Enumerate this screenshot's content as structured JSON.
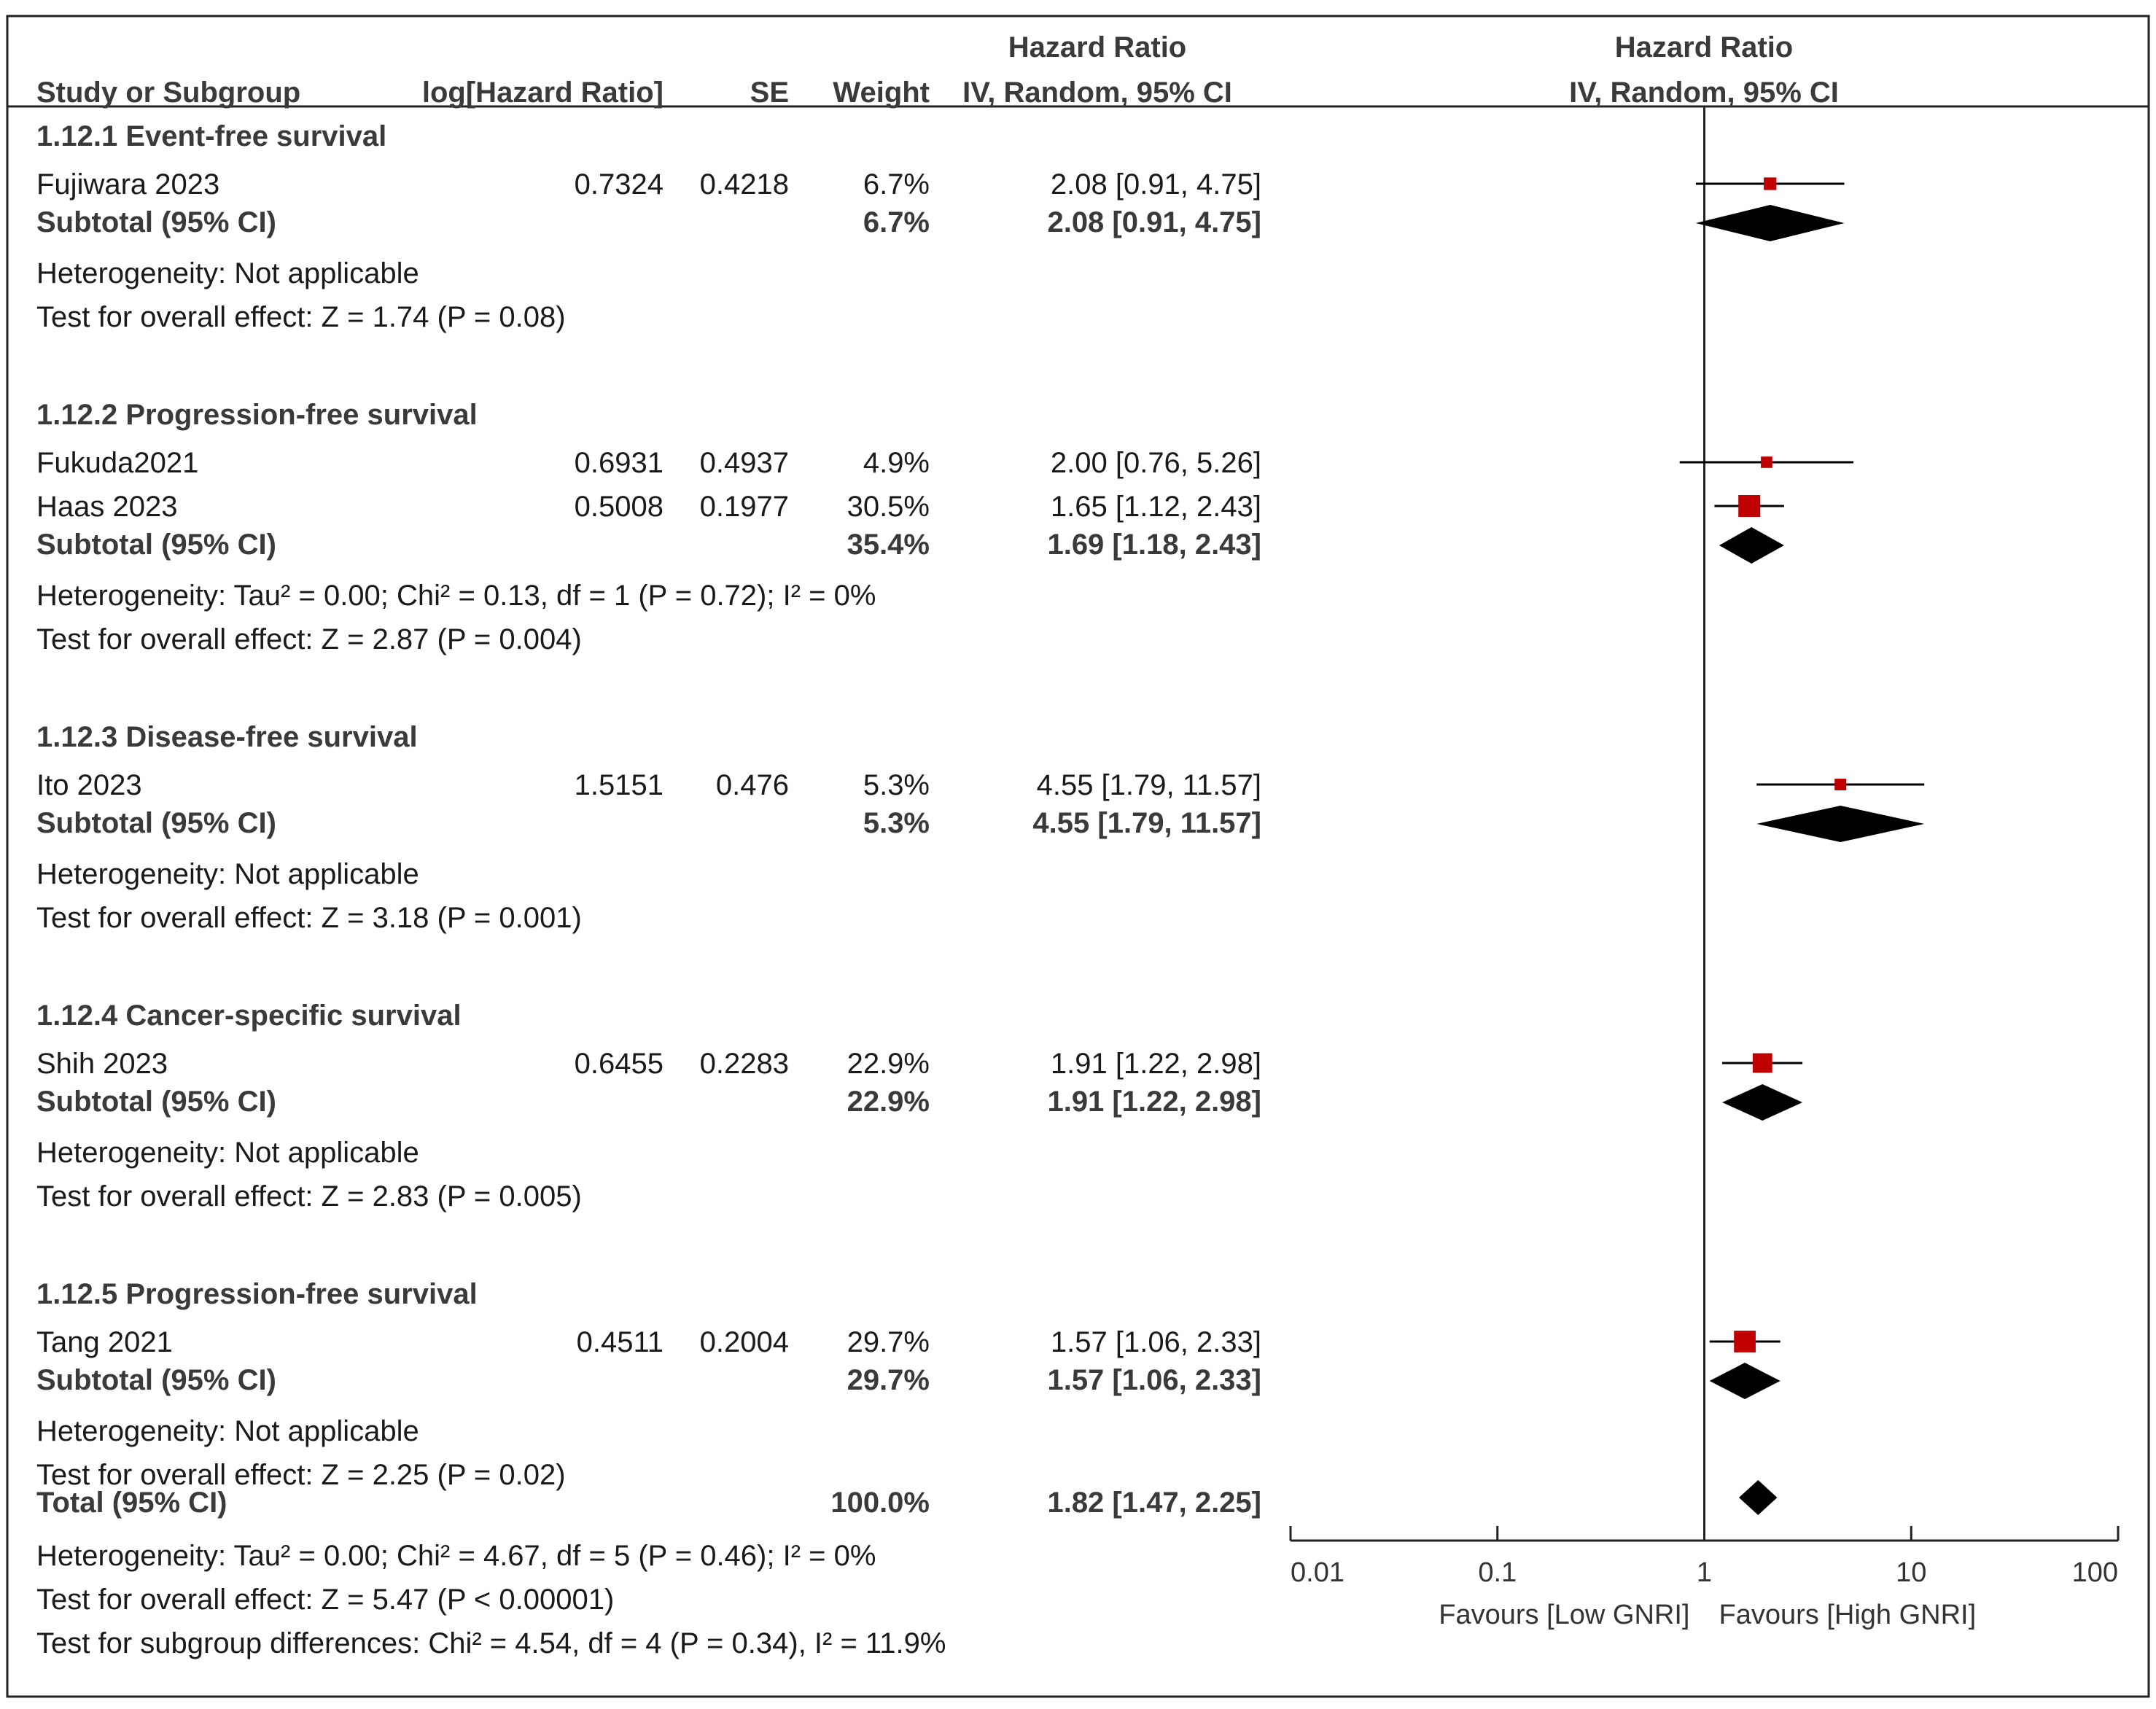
{
  "chart_data": {
    "type": "forest",
    "headers": {
      "study": "Study or Subgroup",
      "loghr": "log[Hazard Ratio]",
      "se": "SE",
      "weight": "Weight",
      "hr_title": "Hazard Ratio",
      "hr_method": "IV, Random, 95% CI",
      "plot_title": "Hazard Ratio",
      "plot_method": "IV, Random, 95% CI"
    },
    "subgroups": [
      {
        "title": "1.12.1 Event-free survival",
        "studies": [
          {
            "name": "Fujiwara 2023",
            "loghr": "0.7324",
            "se": "0.4218",
            "weight": "6.7%",
            "ci_text": "2.08 [0.91, 4.75]",
            "hr": 2.08,
            "lo": 0.91,
            "hi": 4.75,
            "w": 6.7
          }
        ],
        "subtotal": {
          "label": "Subtotal (95% CI)",
          "weight": "6.7%",
          "ci_text": "2.08 [0.91, 4.75]",
          "hr": 2.08,
          "lo": 0.91,
          "hi": 4.75
        },
        "heterogeneity": "Heterogeneity: Not applicable",
        "overall": "Test for overall effect: Z = 1.74 (P = 0.08)"
      },
      {
        "title": "1.12.2 Progression-free survival",
        "studies": [
          {
            "name": "Fukuda2021",
            "loghr": "0.6931",
            "se": "0.4937",
            "weight": "4.9%",
            "ci_text": "2.00 [0.76, 5.26]",
            "hr": 2.0,
            "lo": 0.76,
            "hi": 5.26,
            "w": 4.9
          },
          {
            "name": "Haas 2023",
            "loghr": "0.5008",
            "se": "0.1977",
            "weight": "30.5%",
            "ci_text": "1.65 [1.12, 2.43]",
            "hr": 1.65,
            "lo": 1.12,
            "hi": 2.43,
            "w": 30.5
          }
        ],
        "subtotal": {
          "label": "Subtotal (95% CI)",
          "weight": "35.4%",
          "ci_text": "1.69 [1.18, 2.43]",
          "hr": 1.69,
          "lo": 1.18,
          "hi": 2.43
        },
        "heterogeneity": "Heterogeneity: Tau² = 0.00; Chi² = 0.13, df = 1 (P = 0.72); I² = 0%",
        "overall": "Test for overall effect: Z = 2.87 (P = 0.004)"
      },
      {
        "title": "1.12.3 Disease-free survival",
        "studies": [
          {
            "name": "Ito 2023",
            "loghr": "1.5151",
            "se": "0.476",
            "weight": "5.3%",
            "ci_text": "4.55 [1.79, 11.57]",
            "hr": 4.55,
            "lo": 1.79,
            "hi": 11.57,
            "w": 5.3
          }
        ],
        "subtotal": {
          "label": "Subtotal (95% CI)",
          "weight": "5.3%",
          "ci_text": "4.55 [1.79, 11.57]",
          "hr": 4.55,
          "lo": 1.79,
          "hi": 11.57
        },
        "heterogeneity": "Heterogeneity: Not applicable",
        "overall": "Test for overall effect: Z = 3.18 (P = 0.001)"
      },
      {
        "title": "1.12.4 Cancer-specific survival",
        "studies": [
          {
            "name": "Shih 2023",
            "loghr": "0.6455",
            "se": "0.2283",
            "weight": "22.9%",
            "ci_text": "1.91 [1.22, 2.98]",
            "hr": 1.91,
            "lo": 1.22,
            "hi": 2.98,
            "w": 22.9
          }
        ],
        "subtotal": {
          "label": "Subtotal (95% CI)",
          "weight": "22.9%",
          "ci_text": "1.91 [1.22, 2.98]",
          "hr": 1.91,
          "lo": 1.22,
          "hi": 2.98
        },
        "heterogeneity": "Heterogeneity: Not applicable",
        "overall": "Test for overall effect: Z = 2.83 (P = 0.005)"
      },
      {
        "title": "1.12.5 Progression-free survival",
        "studies": [
          {
            "name": "Tang 2021",
            "loghr": "0.4511",
            "se": "0.2004",
            "weight": "29.7%",
            "ci_text": "1.57 [1.06, 2.33]",
            "hr": 1.57,
            "lo": 1.06,
            "hi": 2.33,
            "w": 29.7
          }
        ],
        "subtotal": {
          "label": "Subtotal (95% CI)",
          "weight": "29.7%",
          "ci_text": "1.57 [1.06, 2.33]",
          "hr": 1.57,
          "lo": 1.06,
          "hi": 2.33
        },
        "heterogeneity": "Heterogeneity: Not applicable",
        "overall": "Test for overall effect: Z = 2.25 (P = 0.02)"
      }
    ],
    "total": {
      "label": "Total (95% CI)",
      "weight": "100.0%",
      "ci_text": "1.82 [1.47, 2.25]",
      "hr": 1.82,
      "lo": 1.47,
      "hi": 2.25,
      "heterogeneity": "Heterogeneity: Tau² = 0.00; Chi² = 4.67, df = 5 (P = 0.46); I² = 0%",
      "overall": "Test for overall effect: Z = 5.47 (P < 0.00001)",
      "subgroup_diff": "Test for subgroup differences: Chi² = 4.54, df = 4 (P = 0.34), I² = 11.9%"
    },
    "axis": {
      "scale": "log",
      "xlim": [
        0.01,
        100
      ],
      "ticks": [
        0.01,
        0.1,
        1,
        10,
        100
      ],
      "tick_labels": [
        "0.01",
        "0.1",
        "1",
        "10",
        "100"
      ],
      "null_value": 1,
      "favours_left": "Favours [Low GNRI]",
      "favours_right": "Favours [High GNRI]"
    },
    "colors": {
      "square": "#c00000",
      "diamond": "#000000",
      "line": "#000000"
    }
  }
}
